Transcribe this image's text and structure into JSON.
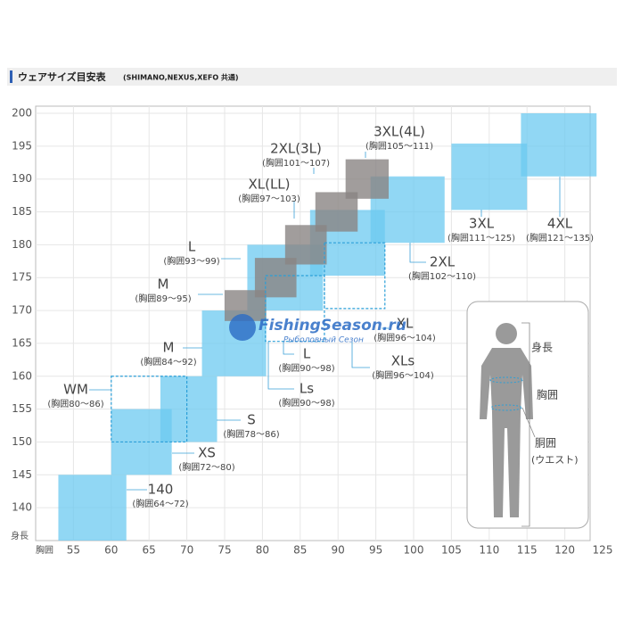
{
  "header": {
    "title": "ウェアサイズ目安表",
    "subtitle": "(SHIMANO,NEXUS,XEFO 共通)"
  },
  "chart_data": {
    "type": "size-chart",
    "y_axis_label": "身長",
    "x_axis_label": "胸囲",
    "xlim": [
      50,
      125
    ],
    "xticks": [
      55,
      60,
      65,
      70,
      75,
      80,
      85,
      90,
      95,
      100,
      105,
      110,
      115,
      120,
      125
    ],
    "ylim": [
      135,
      200
    ],
    "yticks": [
      140,
      145,
      150,
      155,
      160,
      165,
      170,
      175,
      180,
      185,
      190,
      195,
      200
    ],
    "grid": true,
    "colors": {
      "solid": "#6ccaf0",
      "gray": "#8a8483",
      "dashed": "#2b9fd8"
    },
    "boxes": [
      {
        "kind": "solid",
        "x": [
          53,
          62
        ],
        "y": [
          135,
          145
        ]
      },
      {
        "kind": "solid",
        "x": [
          60,
          68
        ],
        "y": [
          145,
          150
        ]
      },
      {
        "kind": "solid",
        "x": [
          60,
          68
        ],
        "y": [
          150,
          155
        ]
      },
      {
        "kind": "solid",
        "x": [
          66.5,
          74
        ],
        "y": [
          150,
          160
        ]
      },
      {
        "kind": "solid",
        "x": [
          72,
          80.5
        ],
        "y": [
          160,
          170
        ]
      },
      {
        "kind": "solid",
        "x": [
          78,
          88
        ],
        "y": [
          170,
          180
        ]
      },
      {
        "kind": "solid",
        "x": [
          86.3,
          96.2
        ],
        "y": [
          175.3,
          185.3
        ]
      },
      {
        "kind": "solid",
        "x": [
          94.3,
          104.1
        ],
        "y": [
          180.3,
          190.4
        ]
      },
      {
        "kind": "solid",
        "x": [
          105,
          115
        ],
        "y": [
          185.3,
          195.4
        ]
      },
      {
        "kind": "solid",
        "x": [
          114.2,
          124.2
        ],
        "y": [
          190.4,
          200
        ]
      },
      {
        "kind": "gray",
        "x": [
          75,
          80.5
        ],
        "y": [
          168.4,
          173.1
        ]
      },
      {
        "kind": "gray",
        "x": [
          79,
          84.5
        ],
        "y": [
          172,
          178
        ]
      },
      {
        "kind": "gray",
        "x": [
          83,
          88.5
        ],
        "y": [
          177,
          183
        ]
      },
      {
        "kind": "gray",
        "x": [
          87,
          92.6
        ],
        "y": [
          182,
          188
        ]
      },
      {
        "kind": "gray",
        "x": [
          91,
          96.7
        ],
        "y": [
          187,
          193
        ]
      },
      {
        "kind": "dashed",
        "x": [
          60,
          70
        ],
        "y": [
          150,
          160
        ]
      },
      {
        "kind": "dashed",
        "x": [
          80.4,
          88.2
        ],
        "y": [
          165.3,
          175.3
        ]
      },
      {
        "kind": "dashed",
        "x": [
          88.2,
          96.2
        ],
        "y": [
          170.3,
          180.3
        ]
      }
    ],
    "labels": [
      {
        "size": "140",
        "range": "(胸囲64〜72)"
      },
      {
        "size": "XS",
        "range": "(胸囲72〜80)"
      },
      {
        "size": "WM",
        "range": "(胸囲80〜86)"
      },
      {
        "size": "S",
        "range": "(胸囲78〜86)"
      },
      {
        "size": "M",
        "range": "(胸囲84〜92)"
      },
      {
        "size": "M",
        "range": "(胸囲89〜95)"
      },
      {
        "size": "L",
        "range": "(胸囲93〜99)"
      },
      {
        "size": "XL(LL)",
        "range": "(胸囲97〜103)"
      },
      {
        "size": "2XL(3L)",
        "range": "(胸囲101〜107)"
      },
      {
        "size": "3XL(4L)",
        "range": "(胸囲105〜111)"
      },
      {
        "size": "L",
        "range": "(胸囲90〜98)"
      },
      {
        "size": "Ls",
        "range": "(胸囲90〜98)"
      },
      {
        "size": "XL",
        "range": "(胸囲96〜104)"
      },
      {
        "size": "XLs",
        "range": "(胸囲96〜104)"
      },
      {
        "size": "2XL",
        "range": "(胸囲102〜110)"
      },
      {
        "size": "3XL",
        "range": "(胸囲111〜125)"
      },
      {
        "size": "4XL",
        "range": "(胸囲121〜135)"
      }
    ],
    "figure": {
      "height": "身長",
      "chest": "胸囲",
      "waist": "胴囲",
      "waist_note": "(ウエスト)"
    },
    "watermark": {
      "title": "FishingSeason.ru",
      "subtitle": "Рыболовный Сезон"
    }
  }
}
